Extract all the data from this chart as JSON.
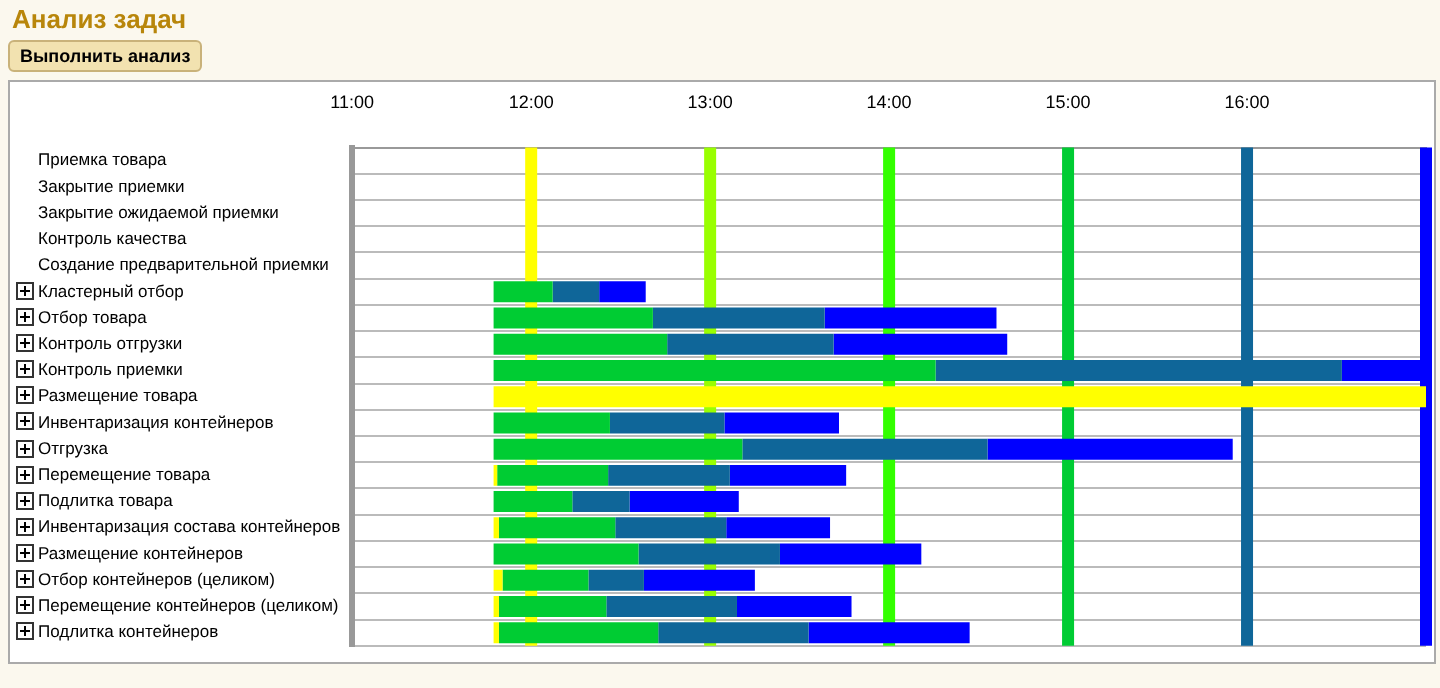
{
  "chart_data": {
    "type": "bar",
    "orientation": "horizontal",
    "title": "Анализ задач",
    "annotations": [
      "Выполнить анализ"
    ],
    "categories": [
      "Приемка товара",
      "Закрытие приемки",
      "Закрытие ожидаемой приемки",
      "Контроль качества",
      "Создание предварительной приемки",
      "Кластерный отбор",
      "Отбор товара",
      "Контроль отгрузки",
      "Контроль приемки",
      "Размещение товара",
      "Инвентаризация контейнеров",
      "Отгрузка",
      "Перемещение товара",
      "Подлитка товара",
      "Инвентаризация состава контейнеров",
      "Размещение контейнеров",
      "Отбор контейнеров (целиком)",
      "Перемещение контейнеров (целиком)",
      "Подлитка контейнеров"
    ],
    "series": [
      {
        "color": "#ffff00",
        "base": [
          null,
          null,
          null,
          null,
          null,
          null,
          null,
          null,
          null,
          11.79,
          null,
          null,
          11.79,
          null,
          11.79,
          null,
          11.79,
          11.79,
          11.79
        ],
        "values": [
          null,
          null,
          null,
          null,
          null,
          null,
          null,
          null,
          null,
          5.21,
          null,
          null,
          0.02,
          null,
          0.03,
          null,
          0.05,
          0.03,
          0.03
        ]
      },
      {
        "color": "#00cc33",
        "base": [
          null,
          null,
          null,
          null,
          null,
          11.79,
          11.79,
          11.79,
          11.79,
          null,
          11.79,
          11.79,
          11.81,
          11.79,
          11.82,
          11.79,
          11.84,
          11.82,
          11.82
        ],
        "values": [
          null,
          null,
          null,
          null,
          null,
          0.33,
          0.89,
          0.97,
          2.47,
          null,
          0.65,
          1.39,
          0.62,
          0.44,
          0.65,
          0.81,
          0.48,
          0.6,
          0.89
        ]
      },
      {
        "color": "#0f6699",
        "base": [
          null,
          null,
          null,
          null,
          null,
          12.12,
          12.68,
          12.76,
          14.26,
          null,
          12.44,
          13.18,
          12.43,
          12.23,
          12.47,
          12.6,
          12.32,
          12.42,
          12.71
        ],
        "values": [
          null,
          null,
          null,
          null,
          null,
          0.26,
          0.96,
          0.93,
          2.27,
          null,
          0.64,
          1.37,
          0.68,
          0.32,
          0.62,
          0.79,
          0.31,
          0.73,
          0.84
        ]
      },
      {
        "color": "#0000ff",
        "base": [
          null,
          null,
          null,
          null,
          null,
          12.38,
          13.64,
          13.69,
          16.53,
          null,
          13.08,
          14.55,
          13.11,
          12.55,
          13.09,
          13.39,
          12.63,
          13.15,
          13.55
        ],
        "values": [
          null,
          null,
          null,
          null,
          null,
          0.26,
          0.96,
          0.97,
          0.47,
          null,
          0.64,
          1.37,
          0.65,
          0.61,
          0.58,
          0.79,
          0.62,
          0.64,
          0.9
        ]
      }
    ],
    "xlim": [
      11,
      17
    ],
    "xticks": [
      {
        "value": 11,
        "label": "11:00"
      },
      {
        "value": 12,
        "label": "12:00"
      },
      {
        "value": 13,
        "label": "13:00"
      },
      {
        "value": 14,
        "label": "14:00"
      },
      {
        "value": 15,
        "label": "15:00"
      },
      {
        "value": 16,
        "label": "16:00"
      }
    ],
    "ref_lines": [
      {
        "axis": "x",
        "value": 12,
        "color": "#ffff00"
      },
      {
        "axis": "x",
        "value": 13,
        "color": "#99ff00"
      },
      {
        "axis": "x",
        "value": 14,
        "color": "#33ff00"
      },
      {
        "axis": "x",
        "value": 15,
        "color": "#00cc33"
      },
      {
        "axis": "x",
        "value": 16,
        "color": "#0f6699"
      },
      {
        "axis": "x",
        "value": 17,
        "color": "#0000ff"
      }
    ],
    "grid": "y",
    "legend": false
  }
}
